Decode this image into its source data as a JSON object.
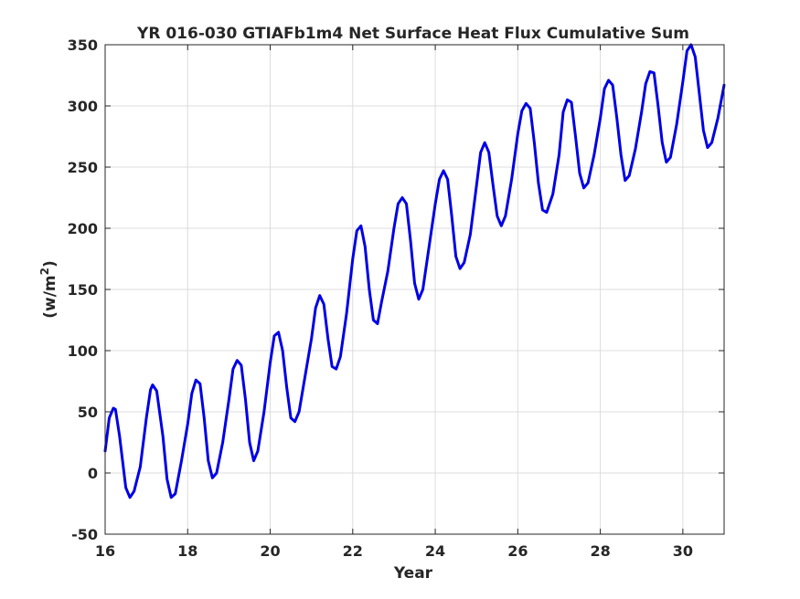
{
  "chart_data": {
    "type": "line",
    "title": "YR 016-030 GTIAFb1m4 Net Surface Heat Flux  Cumulative Sum",
    "xlabel": "Year",
    "ylabel_base": "(w/m",
    "ylabel_sup": "2",
    "ylabel_close": ")",
    "xlim": [
      16,
      31
    ],
    "ylim": [
      -50,
      350
    ],
    "xticks": [
      16,
      18,
      20,
      22,
      24,
      26,
      28,
      30
    ],
    "yticks": [
      -50,
      0,
      50,
      100,
      150,
      200,
      250,
      300,
      350
    ],
    "grid": true,
    "line_color": "#0000e6",
    "series": [
      {
        "x": [
          16.0,
          16.1,
          16.2,
          16.25,
          16.35,
          16.5,
          16.6,
          16.7,
          16.85,
          17.0,
          17.1,
          17.15,
          17.25,
          17.4,
          17.5,
          17.6,
          17.7,
          17.85,
          18.0,
          18.1,
          18.2,
          18.3,
          18.4,
          18.5,
          18.6,
          18.7,
          18.85,
          19.0,
          19.1,
          19.2,
          19.3,
          19.4,
          19.5,
          19.6,
          19.7,
          19.85,
          20.0,
          20.1,
          20.2,
          20.3,
          20.4,
          20.5,
          20.6,
          20.7,
          20.85,
          21.0,
          21.1,
          21.2,
          21.3,
          21.4,
          21.5,
          21.6,
          21.7,
          21.85,
          22.0,
          22.1,
          22.2,
          22.3,
          22.4,
          22.5,
          22.6,
          22.7,
          22.85,
          23.0,
          23.1,
          23.2,
          23.3,
          23.4,
          23.5,
          23.6,
          23.7,
          23.85,
          24.0,
          24.1,
          24.2,
          24.3,
          24.4,
          24.5,
          24.6,
          24.7,
          24.85,
          25.0,
          25.1,
          25.2,
          25.3,
          25.4,
          25.5,
          25.6,
          25.7,
          25.85,
          26.0,
          26.1,
          26.2,
          26.3,
          26.4,
          26.5,
          26.6,
          26.7,
          26.85,
          27.0,
          27.1,
          27.2,
          27.3,
          27.4,
          27.5,
          27.6,
          27.7,
          27.85,
          28.0,
          28.1,
          28.2,
          28.3,
          28.4,
          28.5,
          28.6,
          28.7,
          28.85,
          29.0,
          29.1,
          29.2,
          29.3,
          29.4,
          29.5,
          29.6,
          29.7,
          29.85,
          30.0,
          30.1,
          30.2,
          30.3,
          30.4,
          30.5,
          30.6,
          30.7,
          30.85,
          31.0
        ],
        "y": [
          18,
          45,
          53,
          52,
          30,
          -12,
          -20,
          -15,
          5,
          45,
          68,
          72,
          67,
          30,
          -5,
          -20,
          -17,
          10,
          40,
          65,
          76,
          73,
          45,
          10,
          -4,
          0,
          25,
          60,
          85,
          92,
          88,
          60,
          25,
          10,
          18,
          50,
          90,
          112,
          115,
          100,
          70,
          45,
          42,
          50,
          80,
          110,
          135,
          145,
          138,
          110,
          87,
          85,
          95,
          130,
          175,
          198,
          202,
          185,
          150,
          125,
          122,
          140,
          165,
          200,
          220,
          225,
          220,
          190,
          155,
          142,
          150,
          185,
          220,
          240,
          247,
          240,
          210,
          177,
          167,
          172,
          195,
          235,
          262,
          270,
          262,
          235,
          210,
          202,
          210,
          240,
          277,
          296,
          302,
          298,
          270,
          237,
          215,
          213,
          228,
          260,
          295,
          305,
          303,
          275,
          245,
          233,
          237,
          260,
          290,
          314,
          321,
          317,
          290,
          260,
          239,
          243,
          265,
          295,
          318,
          328,
          327,
          300,
          270,
          254,
          258,
          285,
          320,
          345,
          350,
          340,
          310,
          280,
          266,
          270,
          290,
          317
        ]
      }
    ]
  }
}
